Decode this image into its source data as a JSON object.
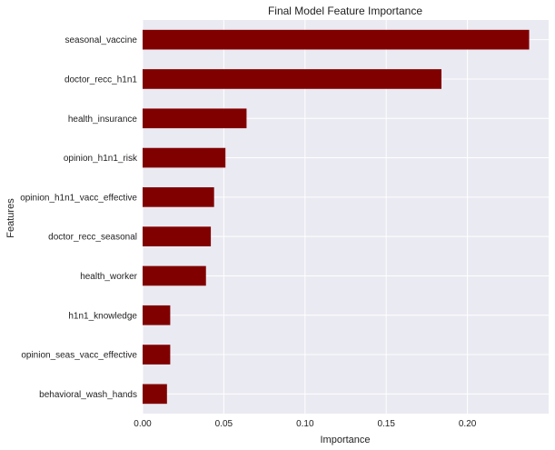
{
  "chart_data": {
    "type": "bar",
    "orientation": "horizontal",
    "title": "Final Model Feature Importance",
    "xlabel": "Importance",
    "ylabel": "Features",
    "categories": [
      "seasonal_vaccine",
      "doctor_recc_h1n1",
      "health_insurance",
      "opinion_h1n1_risk",
      "opinion_h1n1_vacc_effective",
      "doctor_recc_seasonal",
      "health_worker",
      "h1n1_knowledge",
      "opinion_seas_vacc_effective",
      "behavioral_wash_hands"
    ],
    "values": [
      0.238,
      0.184,
      0.064,
      0.051,
      0.044,
      0.042,
      0.039,
      0.017,
      0.017,
      0.015
    ],
    "xlim": [
      0,
      0.25
    ],
    "xticks": [
      0.0,
      0.05,
      0.1,
      0.15,
      0.2
    ],
    "xtick_labels": [
      "0.00",
      "0.05",
      "0.10",
      "0.15",
      "0.20"
    ],
    "bar_color": "#800000",
    "background_color": "#eaeaf2",
    "grid": true
  }
}
